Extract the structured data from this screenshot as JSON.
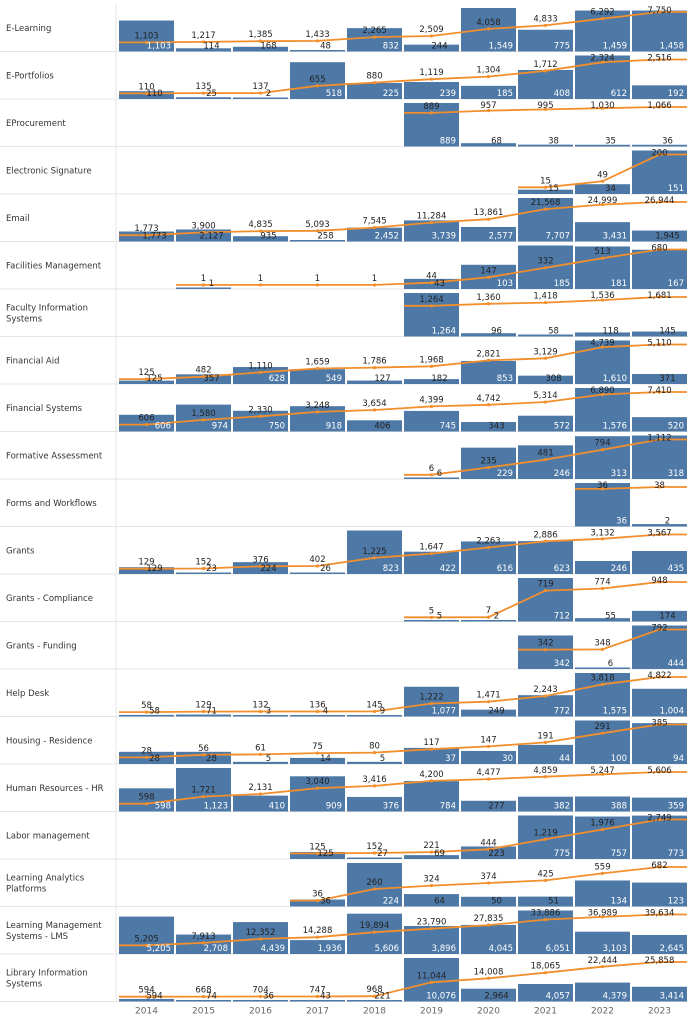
{
  "chart_data": {
    "type": "bar",
    "subtype": "combo-small-multiples",
    "x": [
      "2014",
      "2015",
      "2016",
      "2017",
      "2018",
      "2019",
      "2020",
      "2021",
      "2022",
      "2023"
    ],
    "bar_meaning": "annual",
    "line_meaning": "cumulative",
    "colors": {
      "bar": "#4e79a7",
      "line": "#f28e2b"
    },
    "grid": false,
    "legend": "none",
    "panels": [
      {
        "name": "E-Learning",
        "bars": [
          1103,
          114,
          168,
          48,
          832,
          244,
          1549,
          775,
          1459,
          1458
        ],
        "line": [
          1103,
          1217,
          1385,
          1433,
          2265,
          2509,
          4058,
          4833,
          6292,
          7750
        ]
      },
      {
        "name": "E-Portfolios",
        "bars": [
          110,
          25,
          2,
          518,
          225,
          239,
          185,
          408,
          612,
          192
        ],
        "line": [
          110,
          135,
          137,
          655,
          880,
          1119,
          1304,
          1712,
          2324,
          2516
        ]
      },
      {
        "name": "EProcurement",
        "bars": [
          null,
          null,
          null,
          null,
          null,
          889,
          68,
          38,
          35,
          36
        ],
        "line": [
          null,
          null,
          null,
          null,
          null,
          889,
          957,
          995,
          1030,
          1066
        ]
      },
      {
        "name": "Electronic Signature",
        "bars": [
          null,
          null,
          null,
          null,
          null,
          null,
          null,
          15,
          34,
          151
        ],
        "line": [
          null,
          null,
          null,
          null,
          null,
          null,
          null,
          15,
          49,
          200
        ]
      },
      {
        "name": "Email",
        "bars": [
          1773,
          2127,
          935,
          258,
          2452,
          3739,
          2577,
          7707,
          3431,
          1945
        ],
        "line": [
          1773,
          3900,
          4835,
          5093,
          7545,
          11284,
          13861,
          21568,
          24999,
          26944
        ]
      },
      {
        "name": "Facilities Management",
        "bars": [
          null,
          1,
          null,
          null,
          null,
          43,
          103,
          185,
          181,
          167
        ],
        "line": [
          null,
          1,
          1,
          1,
          1,
          44,
          147,
          332,
          513,
          680
        ]
      },
      {
        "name": "Faculty Information Systems",
        "bars": [
          null,
          null,
          null,
          null,
          null,
          1264,
          96,
          58,
          118,
          145
        ],
        "line": [
          null,
          null,
          null,
          null,
          null,
          1264,
          1360,
          1418,
          1536,
          1681
        ]
      },
      {
        "name": "Financial Aid",
        "bars": [
          125,
          357,
          628,
          549,
          127,
          182,
          853,
          308,
          1610,
          371
        ],
        "line": [
          125,
          482,
          1110,
          1659,
          1786,
          1968,
          2821,
          3129,
          4739,
          5110
        ]
      },
      {
        "name": "Financial Systems",
        "bars": [
          606,
          974,
          750,
          918,
          406,
          745,
          343,
          572,
          1576,
          520
        ],
        "line": [
          606,
          1580,
          2330,
          3248,
          3654,
          4399,
          4742,
          5314,
          6890,
          7410
        ]
      },
      {
        "name": "Formative Assessment",
        "bars": [
          null,
          null,
          null,
          null,
          null,
          6,
          229,
          246,
          313,
          318
        ],
        "line": [
          null,
          null,
          null,
          null,
          null,
          6,
          235,
          481,
          794,
          1112
        ]
      },
      {
        "name": "Forms and Workflows",
        "bars": [
          null,
          null,
          null,
          null,
          null,
          null,
          null,
          null,
          36,
          2
        ],
        "line": [
          null,
          null,
          null,
          null,
          null,
          null,
          null,
          null,
          36,
          38
        ]
      },
      {
        "name": "Grants",
        "bars": [
          129,
          23,
          224,
          26,
          823,
          422,
          616,
          623,
          246,
          435
        ],
        "line": [
          129,
          152,
          376,
          402,
          1225,
          1647,
          2263,
          2886,
          3132,
          3567
        ]
      },
      {
        "name": "Grants - Compliance",
        "bars": [
          null,
          null,
          null,
          null,
          null,
          5,
          2,
          712,
          55,
          174
        ],
        "line": [
          null,
          null,
          null,
          null,
          null,
          5,
          7,
          719,
          774,
          948
        ]
      },
      {
        "name": "Grants - Funding",
        "bars": [
          null,
          null,
          null,
          null,
          null,
          null,
          null,
          342,
          6,
          444
        ],
        "line": [
          null,
          null,
          null,
          null,
          null,
          null,
          null,
          342,
          348,
          792
        ]
      },
      {
        "name": "Help Desk",
        "bars": [
          58,
          71,
          3,
          4,
          9,
          1077,
          249,
          772,
          1575,
          1004
        ],
        "line": [
          58,
          129,
          132,
          136,
          145,
          1222,
          1471,
          2243,
          3818,
          4822
        ]
      },
      {
        "name": "Housing - Residence",
        "bars": [
          28,
          28,
          5,
          14,
          5,
          37,
          30,
          44,
          100,
          94
        ],
        "line": [
          28,
          56,
          61,
          75,
          80,
          117,
          147,
          191,
          291,
          385
        ]
      },
      {
        "name": "Human Resources - HR",
        "bars": [
          598,
          1123,
          410,
          909,
          376,
          784,
          277,
          382,
          388,
          359
        ],
        "line": [
          598,
          1721,
          2131,
          3040,
          3416,
          4200,
          4477,
          4859,
          5247,
          5606
        ]
      },
      {
        "name": "Labor management",
        "bars": [
          null,
          null,
          null,
          125,
          27,
          69,
          223,
          775,
          757,
          773
        ],
        "line": [
          null,
          null,
          null,
          125,
          152,
          221,
          444,
          1219,
          1976,
          2749
        ]
      },
      {
        "name": "Learning Analytics Platforms",
        "bars": [
          null,
          null,
          null,
          36,
          224,
          64,
          50,
          51,
          134,
          123
        ],
        "line": [
          null,
          null,
          null,
          36,
          260,
          324,
          374,
          425,
          559,
          682
        ]
      },
      {
        "name": "Learning Management Systems - LMS",
        "bars": [
          5205,
          2708,
          4439,
          1936,
          5606,
          3896,
          4045,
          6051,
          3103,
          2645
        ],
        "line": [
          5205,
          7913,
          12352,
          14288,
          19894,
          23790,
          27835,
          33886,
          36989,
          39634
        ]
      },
      {
        "name": "Library Information Systems",
        "bars": [
          594,
          74,
          36,
          43,
          221,
          10076,
          2964,
          4057,
          4379,
          3414
        ],
        "line": [
          594,
          668,
          704,
          747,
          968,
          11044,
          14008,
          18065,
          22444,
          25858
        ]
      }
    ]
  }
}
